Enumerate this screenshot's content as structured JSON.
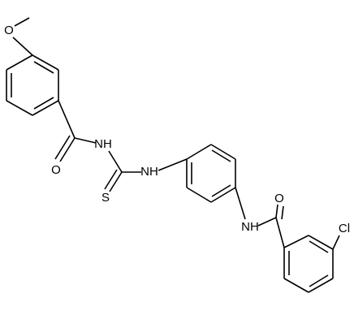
{
  "labels": [
    "O",
    "O",
    "NH",
    "S",
    "NH",
    "NH",
    "O",
    "Cl"
  ]
}
